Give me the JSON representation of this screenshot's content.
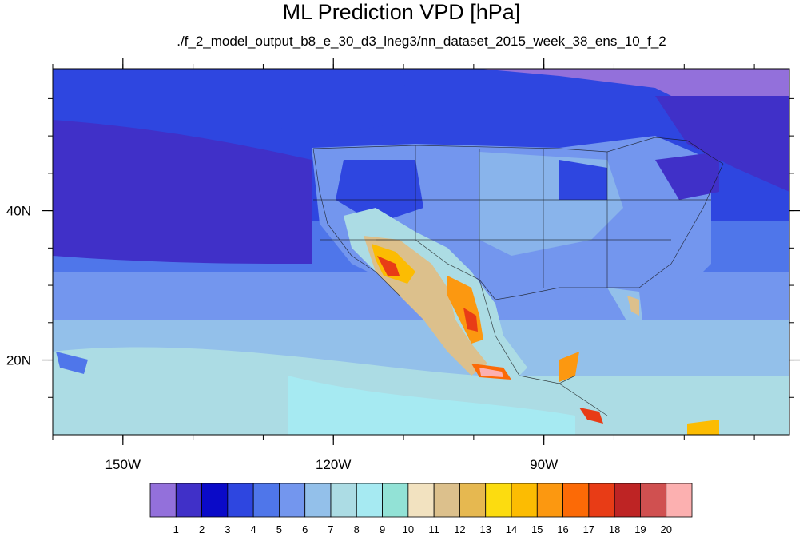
{
  "title": "ML Prediction VPD [hPa]",
  "subtitle": "./f_2_model_output_b8_e_30_d3_lneg3/nn_dataset_2015_week_38_ens_10_f_2",
  "map": {
    "lon_range": [
      -160,
      -55
    ],
    "lat_range": [
      10,
      59
    ],
    "lon_ticks": [
      {
        "value": -150,
        "label": "150W"
      },
      {
        "value": -120,
        "label": "120W"
      },
      {
        "value": -90,
        "label": "90W"
      }
    ],
    "lat_ticks": [
      {
        "value": 40,
        "label": "40N"
      },
      {
        "value": 20,
        "label": "20N"
      }
    ]
  },
  "colorbar": {
    "colors": [
      "#9370db",
      "#4030c8",
      "#0a0ac8",
      "#2e46e0",
      "#4f76ea",
      "#7396ee",
      "#93c0ea",
      "#acdce4",
      "#a6eaf2",
      "#92e2d6",
      "#f2e2c0",
      "#dcc08c",
      "#e6b850",
      "#fcdc10",
      "#fcbc02",
      "#fc9810",
      "#fc6a06",
      "#e83c16",
      "#be2424",
      "#d05050",
      "#fcb0b0"
    ],
    "labels": [
      "1",
      "2",
      "3",
      "4",
      "5",
      "6",
      "7",
      "8",
      "9",
      "10",
      "11",
      "12",
      "13",
      "14",
      "15",
      "16",
      "17",
      "18",
      "19",
      "20"
    ]
  }
}
